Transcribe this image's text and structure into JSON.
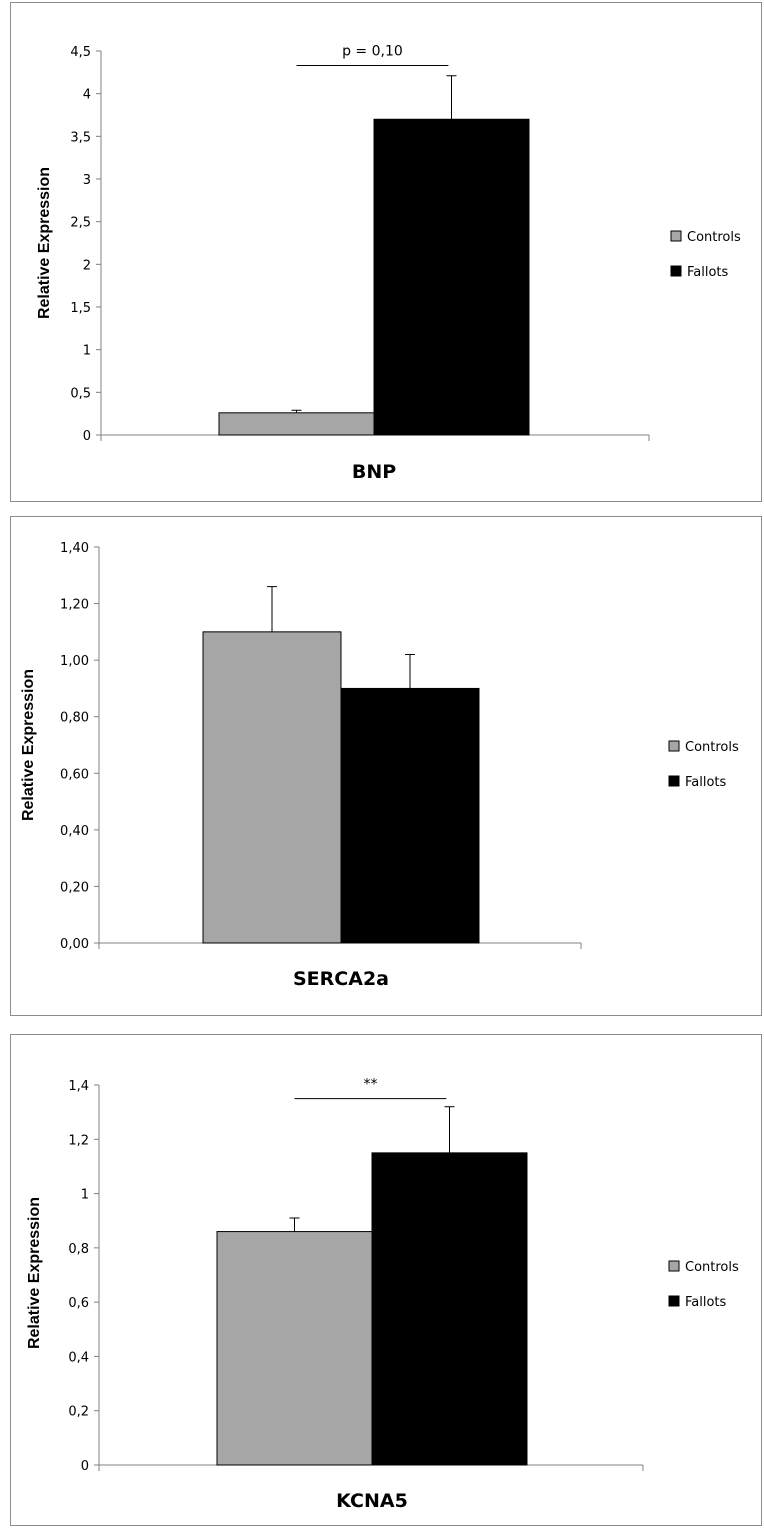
{
  "colors": {
    "controls": "#a6a6a6",
    "fallots": "#000000",
    "axis": "#808080",
    "frame": "#8c8c8c"
  },
  "chart_data": [
    {
      "type": "bar",
      "categories": [
        "BNP"
      ],
      "ylabel": "Relative Expression",
      "ylim": [
        0,
        4.5
      ],
      "yticks": [
        "0",
        "0,5",
        "1",
        "1,5",
        "2",
        "2,5",
        "3",
        "3,5",
        "4",
        "4,5"
      ],
      "ytick_values": [
        0,
        0.5,
        1,
        1.5,
        2,
        2.5,
        3,
        3.5,
        4,
        4.5
      ],
      "series": [
        {
          "name": "Controls",
          "values": [
            0.26
          ],
          "errors": [
            0.03
          ]
        },
        {
          "name": "Fallots",
          "values": [
            3.7
          ],
          "errors": [
            0.51
          ]
        }
      ],
      "annotation": {
        "text": "p = 0,10",
        "level": 4.33
      },
      "legend": "right",
      "grid": false
    },
    {
      "type": "bar",
      "categories": [
        "SERCA2a"
      ],
      "ylabel": "Relative Expression",
      "ylim": [
        0,
        1.4
      ],
      "yticks": [
        "0,00",
        "0,20",
        "0,40",
        "0,60",
        "0,80",
        "1,00",
        "1,20",
        "1,40"
      ],
      "ytick_values": [
        0,
        0.2,
        0.4,
        0.6,
        0.8,
        1.0,
        1.2,
        1.4
      ],
      "series": [
        {
          "name": "Controls",
          "values": [
            1.1
          ],
          "errors": [
            0.16
          ]
        },
        {
          "name": "Fallots",
          "values": [
            0.9
          ],
          "errors": [
            0.12
          ]
        }
      ],
      "annotation": null,
      "legend": "right",
      "grid": false
    },
    {
      "type": "bar",
      "categories": [
        "KCNA5"
      ],
      "ylabel": "Relative Expression",
      "ylim": [
        0,
        1.4
      ],
      "yticks": [
        "0",
        "0,2",
        "0,4",
        "0,6",
        "0,8",
        "1",
        "1,2",
        "1,4"
      ],
      "ytick_values": [
        0,
        0.2,
        0.4,
        0.6,
        0.8,
        1.0,
        1.2,
        1.4
      ],
      "series": [
        {
          "name": "Controls",
          "values": [
            0.86
          ],
          "errors": [
            0.05
          ]
        },
        {
          "name": "Fallots",
          "values": [
            1.15
          ],
          "errors": [
            0.17
          ]
        }
      ],
      "annotation": {
        "text": "**",
        "level": 1.35
      },
      "legend": "right",
      "grid": false
    }
  ]
}
